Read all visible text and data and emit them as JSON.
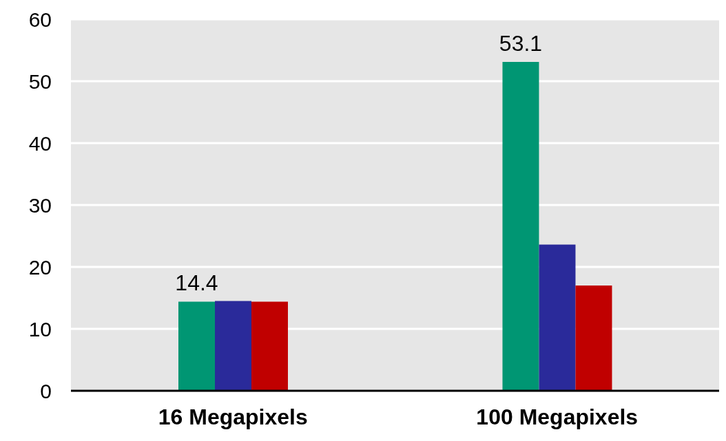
{
  "chart_data": {
    "type": "bar",
    "categories": [
      "16 Megapixels",
      "100 Megapixels"
    ],
    "series": [
      {
        "color": "#009673",
        "values": [
          14.4,
          53.1
        ],
        "value_labels": [
          "14.4",
          "53.1"
        ]
      },
      {
        "color": "#2a2a9a",
        "values": [
          14.5,
          23.6
        ]
      },
      {
        "color": "#c00000",
        "values": [
          14.4,
          17.0
        ]
      }
    ],
    "ylim": [
      0,
      60
    ],
    "yticks": [
      0,
      10,
      20,
      30,
      40,
      50,
      60
    ],
    "grid": "y"
  }
}
